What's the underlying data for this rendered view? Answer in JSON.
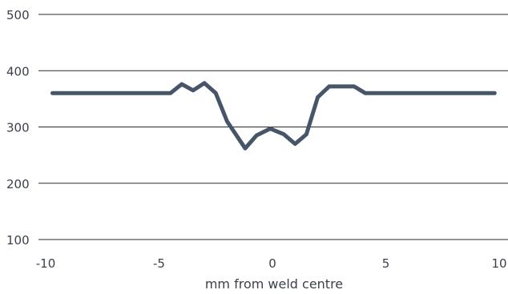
{
  "chart_data": {
    "type": "line",
    "title": "",
    "xlabel": "mm from weld centre",
    "ylabel": "",
    "xlim": [
      -10,
      10
    ],
    "ylim": [
      100,
      500
    ],
    "x_ticks": [
      -10,
      -5,
      0,
      5,
      10
    ],
    "x_tick_labels": [
      "-10",
      "-5",
      "0",
      "5",
      "10"
    ],
    "y_ticks": [
      100,
      200,
      300,
      400,
      500
    ],
    "y_tick_labels": [
      "100",
      "200",
      "300",
      "400",
      "500"
    ],
    "grid": "horizontal",
    "legend": "none",
    "line_color": "#475569",
    "grid_color": "#2b2b2b",
    "series": [
      {
        "x": [
          -9.7,
          -4.5,
          -4.0,
          -3.5,
          -3.0,
          -2.5,
          -2.0,
          -1.2,
          -0.7,
          -0.1,
          0.5,
          1.0,
          1.5,
          2.0,
          2.5,
          3.1,
          3.6,
          4.1,
          4.5,
          9.8
        ],
        "values": [
          360,
          360,
          376,
          365,
          378,
          360,
          310,
          262,
          285,
          297,
          287,
          270,
          287,
          353,
          372,
          372,
          372,
          360,
          360,
          360
        ]
      }
    ]
  }
}
